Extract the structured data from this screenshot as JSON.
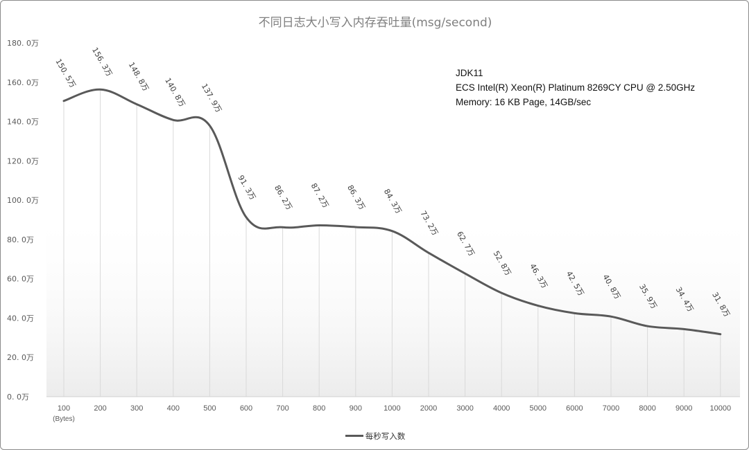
{
  "chart_data": {
    "type": "line",
    "title": "不同日志大小写入内存吞吐量(msg/second)",
    "x_unit_label": "(Bytes)",
    "categories": [
      "100",
      "200",
      "300",
      "400",
      "500",
      "600",
      "700",
      "800",
      "900",
      "1000",
      "2000",
      "3000",
      "4000",
      "5000",
      "6000",
      "7000",
      "8000",
      "9000",
      "10000"
    ],
    "series": [
      {
        "name": "每秒写入数",
        "values": [
          150.5,
          156.3,
          148.8,
          140.8,
          137.9,
          91.3,
          86.2,
          87.2,
          86.3,
          84.3,
          73.2,
          62.7,
          52.8,
          46.3,
          42.5,
          40.8,
          35.9,
          34.4,
          31.8
        ],
        "data_labels": [
          "150. 5万",
          "156. 3万",
          "148. 8万",
          "140. 8万",
          "137. 9万",
          "91. 3万",
          "86. 2万",
          "87. 2万",
          "86. 3万",
          "84. 3万",
          "73. 2万",
          "62. 7万",
          "52. 8万",
          "46. 3万",
          "42. 5万",
          "40. 8万",
          "35. 9万",
          "34. 4万",
          "31. 8万"
        ],
        "color": "#595959"
      }
    ],
    "y_ticks": [
      0,
      20,
      40,
      60,
      80,
      100,
      120,
      140,
      160,
      180
    ],
    "y_tick_labels": [
      "0. 0万",
      "20. 0万",
      "40. 0万",
      "60. 0万",
      "80. 0万",
      "100. 0万",
      "120. 0万",
      "140. 0万",
      "160. 0万",
      "180. 0万"
    ],
    "ylim": [
      0,
      180
    ],
    "grid": "vertical drop lines from each point",
    "legend_position": "bottom-center",
    "annotation_lines": [
      "JDK11",
      "ECS Intel(R) Xeon(R) Platinum 8269CY CPU @ 2.50GHz",
      "Memory: 16 KB Page, 14GB/sec"
    ],
    "colors": {
      "line": "#595959",
      "axis_text": "#595959",
      "title": "#7f7f7f",
      "drop_lines": "#d9d9d9",
      "fill": "#f2f2f2"
    }
  }
}
